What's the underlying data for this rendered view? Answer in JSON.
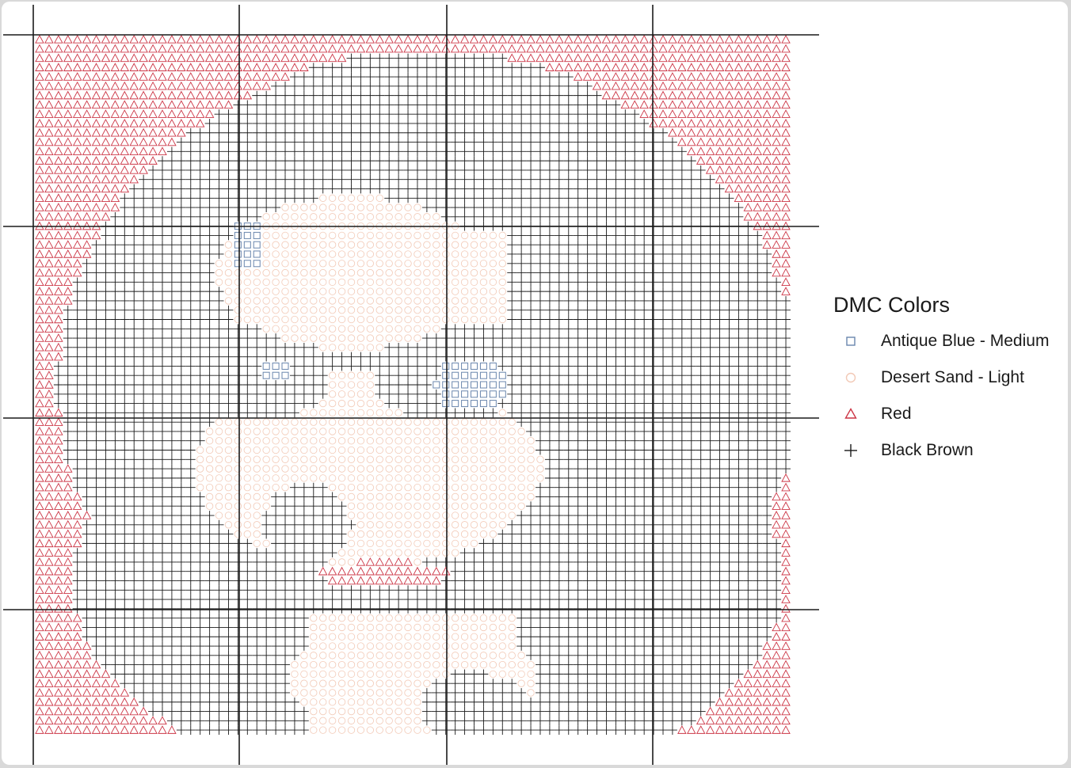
{
  "chart_data": {
    "type": "scatter",
    "title": "",
    "xlabel": "",
    "ylabel": "",
    "grid": true,
    "legend": {
      "title": "DMC Colors",
      "position": "right"
    },
    "series": [
      {
        "name": "Antique Blue - Medium",
        "color": "#6a86ad",
        "shape": "square"
      },
      {
        "name": "Desert Sand - Light",
        "color": "#f2c9b6",
        "shape": "circle"
      },
      {
        "name": "Red",
        "color": "#cc3545",
        "shape": "triangle"
      },
      {
        "name": "Black Brown",
        "color": "#1a1a1a",
        "shape": "plus"
      }
    ],
    "pattern_width": 80,
    "pattern_height": 75
  }
}
